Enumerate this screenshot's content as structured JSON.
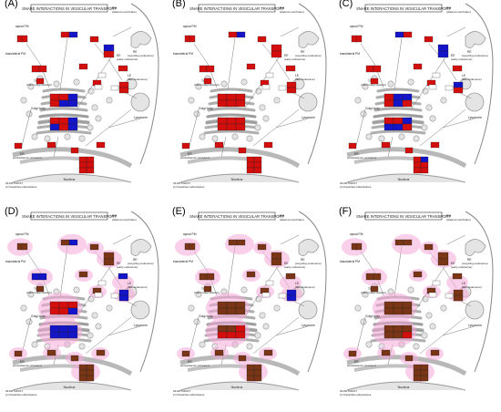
{
  "panels": [
    {
      "label": "(A)",
      "variant": "A"
    },
    {
      "label": "(B)",
      "variant": "B"
    },
    {
      "label": "(C)",
      "variant": "C"
    },
    {
      "label": "(D)",
      "variant": "D"
    },
    {
      "label": "(E)",
      "variant": "E"
    },
    {
      "label": "(F)",
      "variant": "F"
    }
  ],
  "diagram": {
    "title": "SNARE INTERACTIONS IN VESICULAR TRANSPORT",
    "pm_label": "PM",
    "pm_sub": "(plasma membrane)",
    "tgn_label": "TGN",
    "tgn_sub": "(trans Golgi network)",
    "golgi_label": "Golgi body",
    "er_label": "ER",
    "er_sub": "(endoplasmic reticulum)",
    "ee_label": "EE",
    "ee_sub": "(early endosome)",
    "le_label": "LE",
    "le_sub": "(late endosome)",
    "re_label": "RE",
    "re_sub": "(recycling endosome)",
    "lysosome_label": "Lysosome",
    "nucleus_label": "Nucleus",
    "apical_label": "apical PM",
    "basolateral_label": "basolateral PM",
    "footer_line1": "04130 5/20/17",
    "footer_line2": "(c) Kanehisa Laboratories"
  },
  "colors": {
    "red": "#d40d0d",
    "blue": "#1414c8",
    "brown": "#7a3516",
    "pink_glow": "#f7a8d8",
    "membrane": "#e4e4e4",
    "membrane_stroke": "#9a9a9a"
  }
}
